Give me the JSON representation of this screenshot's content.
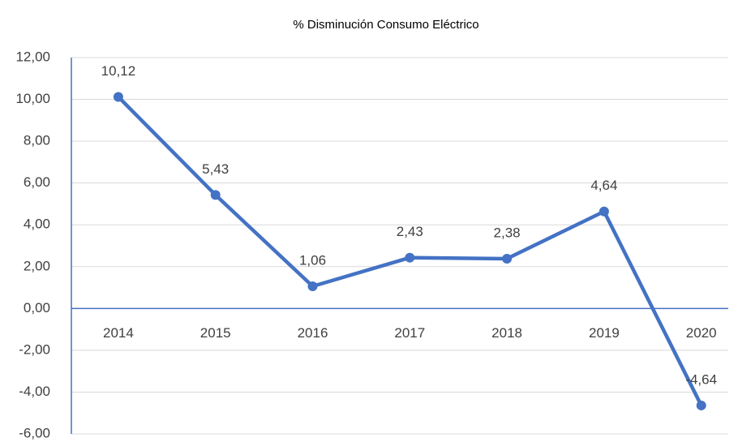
{
  "chart_data": {
    "type": "line",
    "title": "% Disminución Consumo Eléctrico",
    "categories": [
      "2014",
      "2015",
      "2016",
      "2017",
      "2018",
      "2019",
      "2020"
    ],
    "series": [
      {
        "name": "% Disminución Consumo Eléctrico",
        "color": "#4472c4",
        "values": [
          10.12,
          5.43,
          1.06,
          2.43,
          2.38,
          4.64,
          -4.64
        ],
        "value_labels": [
          "10,12",
          "5,43",
          "1,06",
          "2,43",
          "2,38",
          "4,64",
          "-4,64"
        ]
      }
    ],
    "ylim": [
      -6,
      12
    ],
    "yticks": [
      {
        "value": -6,
        "label": "-6,00"
      },
      {
        "value": -4,
        "label": "-4,00"
      },
      {
        "value": -2,
        "label": "-2,00"
      },
      {
        "value": 0,
        "label": "0,00"
      },
      {
        "value": 2,
        "label": "2,00"
      },
      {
        "value": 4,
        "label": "4,00"
      },
      {
        "value": 6,
        "label": "6,00"
      },
      {
        "value": 8,
        "label": "8,00"
      },
      {
        "value": 10,
        "label": "10,00"
      },
      {
        "value": 12,
        "label": "12,00"
      }
    ],
    "grid": true
  }
}
